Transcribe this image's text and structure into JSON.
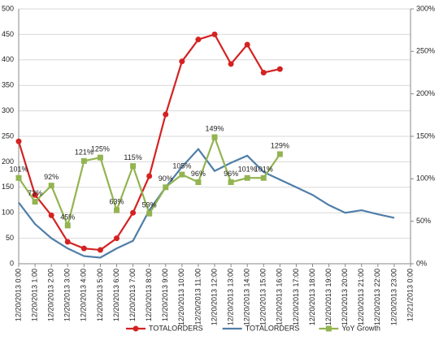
{
  "chart_data": {
    "type": "line",
    "categories": [
      "12/20/2013 0:00",
      "12/20/2013 1:00",
      "12/20/2013 2:00",
      "12/20/2013 3:00",
      "12/20/2013 4:00",
      "12/20/2013 5:00",
      "12/20/2013 6:00",
      "12/20/2013 7:00",
      "12/20/2013 8:00",
      "12/20/2013 9:00",
      "12/20/2013 10:00",
      "12/20/2013 11:00",
      "12/20/2013 12:00",
      "12/20/2013 13:00",
      "12/20/2013 14:00",
      "12/20/2013 15:00",
      "12/20/2013 16:00",
      "12/20/2013 17:00",
      "12/20/2013 18:00",
      "12/20/2013 19:00",
      "12/20/2013 20:00",
      "12/20/2013 21:00",
      "12/20/2013 22:00",
      "12/20/2013 23:00",
      "12/21/2013 0:00"
    ],
    "series": [
      {
        "name": "TOTALORDERS",
        "color": "#d42222",
        "marker": "circle",
        "values": [
          240,
          135,
          95,
          43,
          30,
          27,
          50,
          100,
          172,
          293,
          397,
          440,
          450,
          392,
          430,
          375,
          382,
          null,
          null,
          null,
          null,
          null,
          null,
          null,
          null
        ]
      },
      {
        "name": "TOTALORDERS",
        "color": "#4f7ea8",
        "marker": "none",
        "values": [
          120,
          78,
          50,
          30,
          15,
          12,
          30,
          45,
          105,
          150,
          190,
          225,
          182,
          198,
          212,
          180,
          165,
          150,
          135,
          115,
          100,
          105,
          97,
          90,
          null
        ]
      },
      {
        "name": "YoY Growth",
        "color": "#93b451",
        "marker": "square",
        "axis": "y2",
        "values": [
          101,
          73,
          92,
          45,
          121,
          125,
          63,
          115,
          59,
          90,
          105,
          96,
          149,
          96,
          101,
          101,
          129,
          null,
          null,
          null,
          null,
          null,
          null,
          null,
          null
        ],
        "value_labels": [
          "101%",
          "73%",
          "92%",
          "45%",
          "121%",
          "125%",
          "63%",
          "115%",
          "59%",
          "90%",
          "105%",
          "96%",
          "149%",
          "96%",
          "101%",
          "101%",
          "129%",
          null,
          null,
          null,
          null,
          null,
          null,
          null,
          null
        ]
      }
    ],
    "ylim": [
      0,
      500
    ],
    "yticks": [
      0,
      50,
      100,
      150,
      200,
      250,
      300,
      350,
      400,
      450,
      500
    ],
    "y2lim": [
      0,
      300
    ],
    "y2ticks": [
      {
        "value": 0,
        "label": "0%"
      },
      {
        "value": 50,
        "label": "50%"
      },
      {
        "value": 100,
        "label": "100%"
      },
      {
        "value": 150,
        "label": "150%"
      },
      {
        "value": 200,
        "label": "200%"
      },
      {
        "value": 250,
        "label": "250%"
      },
      {
        "value": 300,
        "label": "300%"
      }
    ],
    "grid": true,
    "legend": "bottom"
  }
}
